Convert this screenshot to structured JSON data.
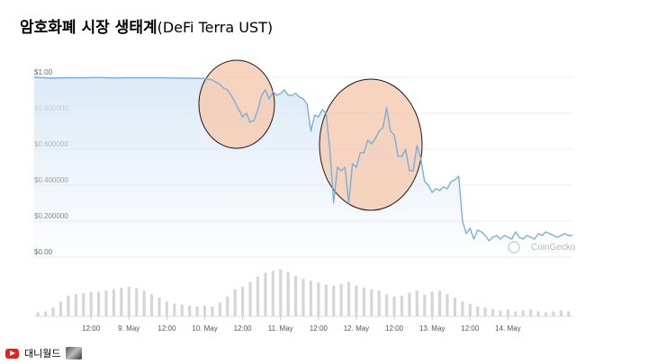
{
  "header": {
    "title_main": "암호화폐 시장 생태계",
    "title_sub": "(DeFi Terra UST)"
  },
  "footer": {
    "channel_name": "대니월드",
    "icon": "youtube-icon"
  },
  "chart_data": {
    "type": "line",
    "y_ticks": [
      "$1.00",
      "$0.800000",
      "$0.600000",
      "$0.400000",
      "$0.200000",
      "$0.00"
    ],
    "y_tick_values": [
      1.0,
      0.8,
      0.6,
      0.4,
      0.2,
      0.0
    ],
    "x_tick_labels": [
      "12:00",
      "9. May",
      "12:00",
      "10. May",
      "12:00",
      "11. May",
      "12:00",
      "12. May",
      "12:00",
      "13. May",
      "12:00",
      "14. May"
    ],
    "x_range_days": [
      7.75,
      14.85
    ],
    "ylim": [
      0,
      1.0
    ],
    "watermark": "CoinGecko",
    "colors": {
      "line": "#7ab0d8",
      "fill_top": "#dbe9f6",
      "volume": "#d6d6d6",
      "highlight_fill": "#f4cdb4",
      "highlight_stroke": "#1a1a1a"
    },
    "price_series": {
      "x": [
        7.75,
        8.0,
        8.2,
        8.4,
        8.6,
        8.8,
        9.0,
        9.2,
        9.4,
        9.6,
        9.8,
        10.0,
        10.1,
        10.2,
        10.25,
        10.3,
        10.35,
        10.4,
        10.45,
        10.5,
        10.55,
        10.6,
        10.65,
        10.7,
        10.75,
        10.8,
        10.85,
        10.9,
        10.95,
        11.0,
        11.05,
        11.1,
        11.15,
        11.2,
        11.25,
        11.3,
        11.35,
        11.4,
        11.45,
        11.5,
        11.55,
        11.6,
        11.65,
        11.7,
        11.75,
        11.8,
        11.85,
        11.9,
        11.95,
        12.0,
        12.05,
        12.1,
        12.15,
        12.2,
        12.25,
        12.3,
        12.35,
        12.4,
        12.45,
        12.5,
        12.55,
        12.6,
        12.65,
        12.7,
        12.75,
        12.8,
        12.85,
        12.9,
        12.95,
        13.0,
        13.05,
        13.1,
        13.15,
        13.2,
        13.25,
        13.3,
        13.35,
        13.4,
        13.45,
        13.5,
        13.55,
        13.6,
        13.65,
        13.7,
        13.75,
        13.8,
        13.85,
        13.9,
        13.95,
        14.0,
        14.05,
        14.1,
        14.15,
        14.2,
        14.25,
        14.3,
        14.35,
        14.4,
        14.45,
        14.5,
        14.55,
        14.6,
        14.65,
        14.7,
        14.75,
        14.8,
        14.85
      ],
      "y": [
        1.0,
        0.995,
        0.998,
        0.997,
        0.999,
        0.996,
        0.998,
        0.997,
        0.998,
        0.996,
        0.995,
        0.993,
        0.985,
        0.96,
        0.94,
        0.93,
        0.9,
        0.86,
        0.82,
        0.78,
        0.8,
        0.75,
        0.76,
        0.82,
        0.9,
        0.93,
        0.88,
        0.92,
        0.9,
        0.91,
        0.93,
        0.9,
        0.9,
        0.91,
        0.89,
        0.88,
        0.85,
        0.7,
        0.79,
        0.78,
        0.82,
        0.8,
        0.6,
        0.3,
        0.5,
        0.48,
        0.5,
        0.3,
        0.52,
        0.5,
        0.58,
        0.58,
        0.65,
        0.63,
        0.66,
        0.7,
        0.72,
        0.83,
        0.7,
        0.68,
        0.56,
        0.56,
        0.6,
        0.48,
        0.48,
        0.62,
        0.55,
        0.42,
        0.4,
        0.36,
        0.38,
        0.37,
        0.39,
        0.38,
        0.42,
        0.43,
        0.45,
        0.2,
        0.13,
        0.16,
        0.1,
        0.15,
        0.14,
        0.12,
        0.09,
        0.11,
        0.12,
        0.1,
        0.12,
        0.11,
        0.1,
        0.14,
        0.11,
        0.1,
        0.12,
        0.11,
        0.1,
        0.13,
        0.12,
        0.14,
        0.13,
        0.12,
        0.11,
        0.12,
        0.13,
        0.12,
        0.12
      ]
    },
    "volume_series": {
      "x": [
        7.8,
        7.9,
        8.0,
        8.1,
        8.2,
        8.3,
        8.4,
        8.5,
        8.6,
        8.7,
        8.8,
        8.9,
        9.0,
        9.1,
        9.2,
        9.3,
        9.4,
        9.5,
        9.6,
        9.7,
        9.8,
        9.9,
        10.0,
        10.1,
        10.2,
        10.3,
        10.4,
        10.5,
        10.6,
        10.7,
        10.8,
        10.9,
        11.0,
        11.1,
        11.2,
        11.3,
        11.4,
        11.5,
        11.6,
        11.7,
        11.8,
        11.9,
        12.0,
        12.1,
        12.2,
        12.3,
        12.4,
        12.5,
        12.6,
        12.7,
        12.8,
        12.9,
        13.0,
        13.1,
        13.2,
        13.3,
        13.4,
        13.5,
        13.6,
        13.7,
        13.8,
        13.9,
        14.0,
        14.1,
        14.2,
        14.3,
        14.4,
        14.5,
        14.6,
        14.7,
        14.8
      ],
      "v": [
        0.08,
        0.1,
        0.18,
        0.3,
        0.42,
        0.45,
        0.47,
        0.49,
        0.5,
        0.52,
        0.55,
        0.58,
        0.6,
        0.57,
        0.52,
        0.45,
        0.38,
        0.3,
        0.26,
        0.24,
        0.22,
        0.2,
        0.22,
        0.2,
        0.28,
        0.4,
        0.55,
        0.6,
        0.7,
        0.8,
        0.88,
        0.92,
        0.95,
        0.9,
        0.82,
        0.76,
        0.72,
        0.68,
        0.64,
        0.62,
        0.66,
        0.7,
        0.62,
        0.58,
        0.55,
        0.52,
        0.45,
        0.4,
        0.42,
        0.48,
        0.52,
        0.44,
        0.5,
        0.52,
        0.45,
        0.38,
        0.3,
        0.25,
        0.2,
        0.18,
        0.15,
        0.12,
        0.14,
        0.1,
        0.12,
        0.14,
        0.1,
        0.08,
        0.1,
        0.12,
        0.1
      ]
    }
  }
}
